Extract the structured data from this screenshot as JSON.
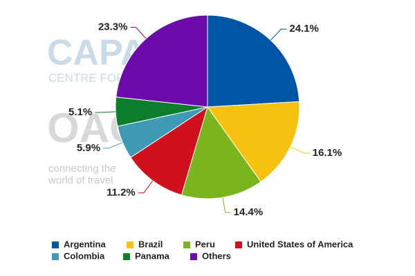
{
  "chart_data": {
    "type": "pie",
    "categories": [
      "Argentina",
      "Brazil",
      "Peru",
      "United States of America",
      "Colombia",
      "Panama",
      "Others"
    ],
    "values": [
      24.1,
      16.1,
      14.4,
      11.2,
      5.9,
      5.1,
      23.3
    ],
    "value_labels": [
      "24.1%",
      "16.1%",
      "14.4%",
      "11.2%",
      "5.9%",
      "5.1%",
      "23.3%"
    ],
    "colors": [
      "#0055a4",
      "#f7c20f",
      "#7ab51d",
      "#d0101b",
      "#3f9ab5",
      "#0b7d2b",
      "#6c0aab"
    ],
    "legend": "bottom",
    "watermark": [
      "CAPA",
      "CENTRE FOR AVIATION",
      "OAG",
      "connecting the",
      "world of travel"
    ]
  }
}
